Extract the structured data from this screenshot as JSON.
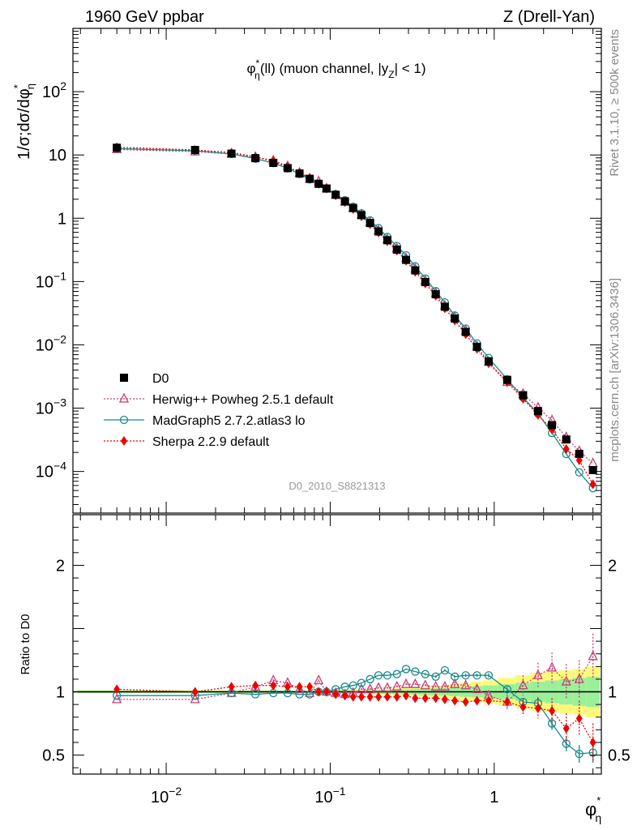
{
  "header": {
    "beam": "1960 GeV ppbar",
    "process": "Z (Drell-Yan)"
  },
  "side_labels": {
    "rivet": "Rivet 3.1.10, ≥ 500k events",
    "mcplots": "mcplots.cern.ch [arXiv:1306.3436]"
  },
  "chart_data": {
    "type": "line",
    "title": "φ*_η(ll) (muon channel, |y_Z| < 1)",
    "title_parts": {
      "phi": "φ",
      "sup": "*",
      "sub": "η",
      "rest1": "(ll) (muon channel, |",
      "y": "y",
      "ysub": "Z",
      "rest2": "| < 1)"
    },
    "analysis_id": "D0_2010_S8821313",
    "xlabel": {
      "main": "φ",
      "sup": "*",
      "sub": "η"
    },
    "ylabel": {
      "main": "1/σ;dσ/dφ",
      "sup": "*",
      "sub": "η"
    },
    "ratio_ylabel": "Ratio to D0",
    "xscale": "log",
    "xlim": [
      0.0027,
      4.5
    ],
    "ylim": [
      2.2e-05,
      1000
    ],
    "ratio_ylim": [
      0.35,
      2.4
    ],
    "x_ticks": [
      {
        "value": 0.01,
        "base": "10",
        "exp": "−2"
      },
      {
        "value": 0.1,
        "base": "10",
        "exp": "−1"
      },
      {
        "value": 1,
        "base": "1",
        "exp": ""
      }
    ],
    "y_ticks": [
      {
        "value": 100,
        "base": "10",
        "exp": "2"
      },
      {
        "value": 10,
        "base": "10",
        "exp": ""
      },
      {
        "value": 1,
        "base": "1",
        "exp": ""
      },
      {
        "value": 0.1,
        "base": "10",
        "exp": "−1"
      },
      {
        "value": 0.01,
        "base": "10",
        "exp": "−2"
      },
      {
        "value": 0.001,
        "base": "10",
        "exp": "−3"
      },
      {
        "value": 0.0001,
        "base": "10",
        "exp": "−4"
      }
    ],
    "ratio_ticks": [
      {
        "value": 2,
        "label": "2"
      },
      {
        "value": 1,
        "label": "1"
      },
      {
        "value": 0.5,
        "label": "0.5"
      }
    ],
    "legend_position": "lower-left",
    "x": [
      0.005,
      0.015,
      0.025,
      0.035,
      0.045,
      0.055,
      0.065,
      0.075,
      0.085,
      0.095,
      0.108,
      0.123,
      0.138,
      0.155,
      0.175,
      0.197,
      0.223,
      0.255,
      0.29,
      0.33,
      0.38,
      0.44,
      0.5,
      0.575,
      0.67,
      0.785,
      0.925,
      1.2,
      1.5,
      1.85,
      2.25,
      2.75,
      3.3,
      4.0
    ],
    "series": [
      {
        "name": "D0",
        "style": "data",
        "marker": "square",
        "color": "#000000",
        "values": [
          13.0,
          12.0,
          10.5,
          8.9,
          7.5,
          6.2,
          5.1,
          4.2,
          3.5,
          2.95,
          2.35,
          1.85,
          1.45,
          1.12,
          0.84,
          0.62,
          0.45,
          0.32,
          0.22,
          0.15,
          0.098,
          0.063,
          0.04,
          0.026,
          0.016,
          0.0093,
          0.0055,
          0.0028,
          0.0016,
          0.0009,
          0.00054,
          0.00032,
          0.00019,
          0.000105
        ],
        "error_band_inner": [
          0.01,
          0.01,
          0.01,
          0.01,
          0.01,
          0.01,
          0.01,
          0.01,
          0.01,
          0.01,
          0.01,
          0.01,
          0.012,
          0.012,
          0.014,
          0.015,
          0.016,
          0.018,
          0.02,
          0.022,
          0.025,
          0.028,
          0.03,
          0.035,
          0.04,
          0.045,
          0.05,
          0.06,
          0.07,
          0.08,
          0.09,
          0.1,
          0.11,
          0.12
        ],
        "error_band_outer": [
          0.012,
          0.012,
          0.012,
          0.012,
          0.012,
          0.012,
          0.012,
          0.012,
          0.013,
          0.013,
          0.014,
          0.015,
          0.016,
          0.018,
          0.02,
          0.022,
          0.025,
          0.028,
          0.03,
          0.035,
          0.04,
          0.045,
          0.05,
          0.06,
          0.07,
          0.08,
          0.09,
          0.11,
          0.13,
          0.15,
          0.16,
          0.17,
          0.18,
          0.2
        ]
      },
      {
        "name": "Herwig++ Powheg 2.5.1 default",
        "style": "dotted",
        "marker": "triangle",
        "color": "#c83c78",
        "ratio": [
          0.94,
          0.94,
          0.99,
          1.04,
          1.09,
          1.07,
          1.02,
          0.99,
          1.09,
          1.0,
          0.99,
          0.98,
          0.99,
          1.02,
          1.02,
          1.03,
          1.03,
          1.04,
          1.06,
          1.06,
          1.05,
          1.04,
          1.04,
          1.06,
          1.05,
          1.02,
          0.97,
          0.92,
          1.05,
          1.13,
          1.19,
          1.08,
          1.1,
          1.28
        ],
        "ratio_err": [
          0.01,
          0.01,
          0.01,
          0.01,
          0.01,
          0.01,
          0.01,
          0.01,
          0.01,
          0.01,
          0.01,
          0.01,
          0.01,
          0.01,
          0.01,
          0.01,
          0.01,
          0.01,
          0.01,
          0.01,
          0.01,
          0.01,
          0.015,
          0.02,
          0.02,
          0.03,
          0.04,
          0.06,
          0.08,
          0.1,
          0.12,
          0.14,
          0.15,
          0.18
        ]
      },
      {
        "name": "MadGraph5 2.7.2.atlas3 lo",
        "style": "solid",
        "marker": "circle",
        "color": "#1a8a8a",
        "ratio": [
          0.97,
          0.97,
          0.99,
          0.98,
          0.99,
          0.99,
          0.98,
          0.98,
          1.0,
          1.0,
          1.02,
          1.04,
          1.05,
          1.07,
          1.1,
          1.13,
          1.13,
          1.14,
          1.18,
          1.16,
          1.14,
          1.12,
          1.17,
          1.12,
          1.13,
          1.13,
          1.13,
          1.02,
          0.92,
          0.91,
          0.75,
          0.59,
          0.51,
          0.52
        ],
        "ratio_err": [
          0.005,
          0.005,
          0.005,
          0.005,
          0.005,
          0.005,
          0.005,
          0.005,
          0.005,
          0.005,
          0.005,
          0.005,
          0.005,
          0.005,
          0.005,
          0.006,
          0.006,
          0.007,
          0.008,
          0.008,
          0.009,
          0.01,
          0.01,
          0.01,
          0.012,
          0.014,
          0.016,
          0.02,
          0.03,
          0.05,
          0.05,
          0.06,
          0.07,
          0.08
        ]
      },
      {
        "name": "Sherpa 2.2.9 default",
        "style": "dotted",
        "marker": "diamond",
        "color": "#ee0000",
        "ratio": [
          1.02,
          1.0,
          1.04,
          1.05,
          1.05,
          1.04,
          1.04,
          1.04,
          1.0,
          1.0,
          0.98,
          0.97,
          0.96,
          0.96,
          0.96,
          0.96,
          0.96,
          0.96,
          0.97,
          0.95,
          0.95,
          0.95,
          0.94,
          0.93,
          0.92,
          0.93,
          0.93,
          0.92,
          0.88,
          0.87,
          0.85,
          0.71,
          0.79,
          0.6
        ],
        "ratio_err": [
          0.005,
          0.005,
          0.005,
          0.005,
          0.005,
          0.005,
          0.005,
          0.005,
          0.005,
          0.005,
          0.005,
          0.005,
          0.006,
          0.006,
          0.006,
          0.007,
          0.008,
          0.008,
          0.009,
          0.01,
          0.01,
          0.012,
          0.012,
          0.015,
          0.02,
          0.025,
          0.03,
          0.04,
          0.06,
          0.08,
          0.1,
          0.12,
          0.14,
          0.15
        ]
      }
    ]
  }
}
